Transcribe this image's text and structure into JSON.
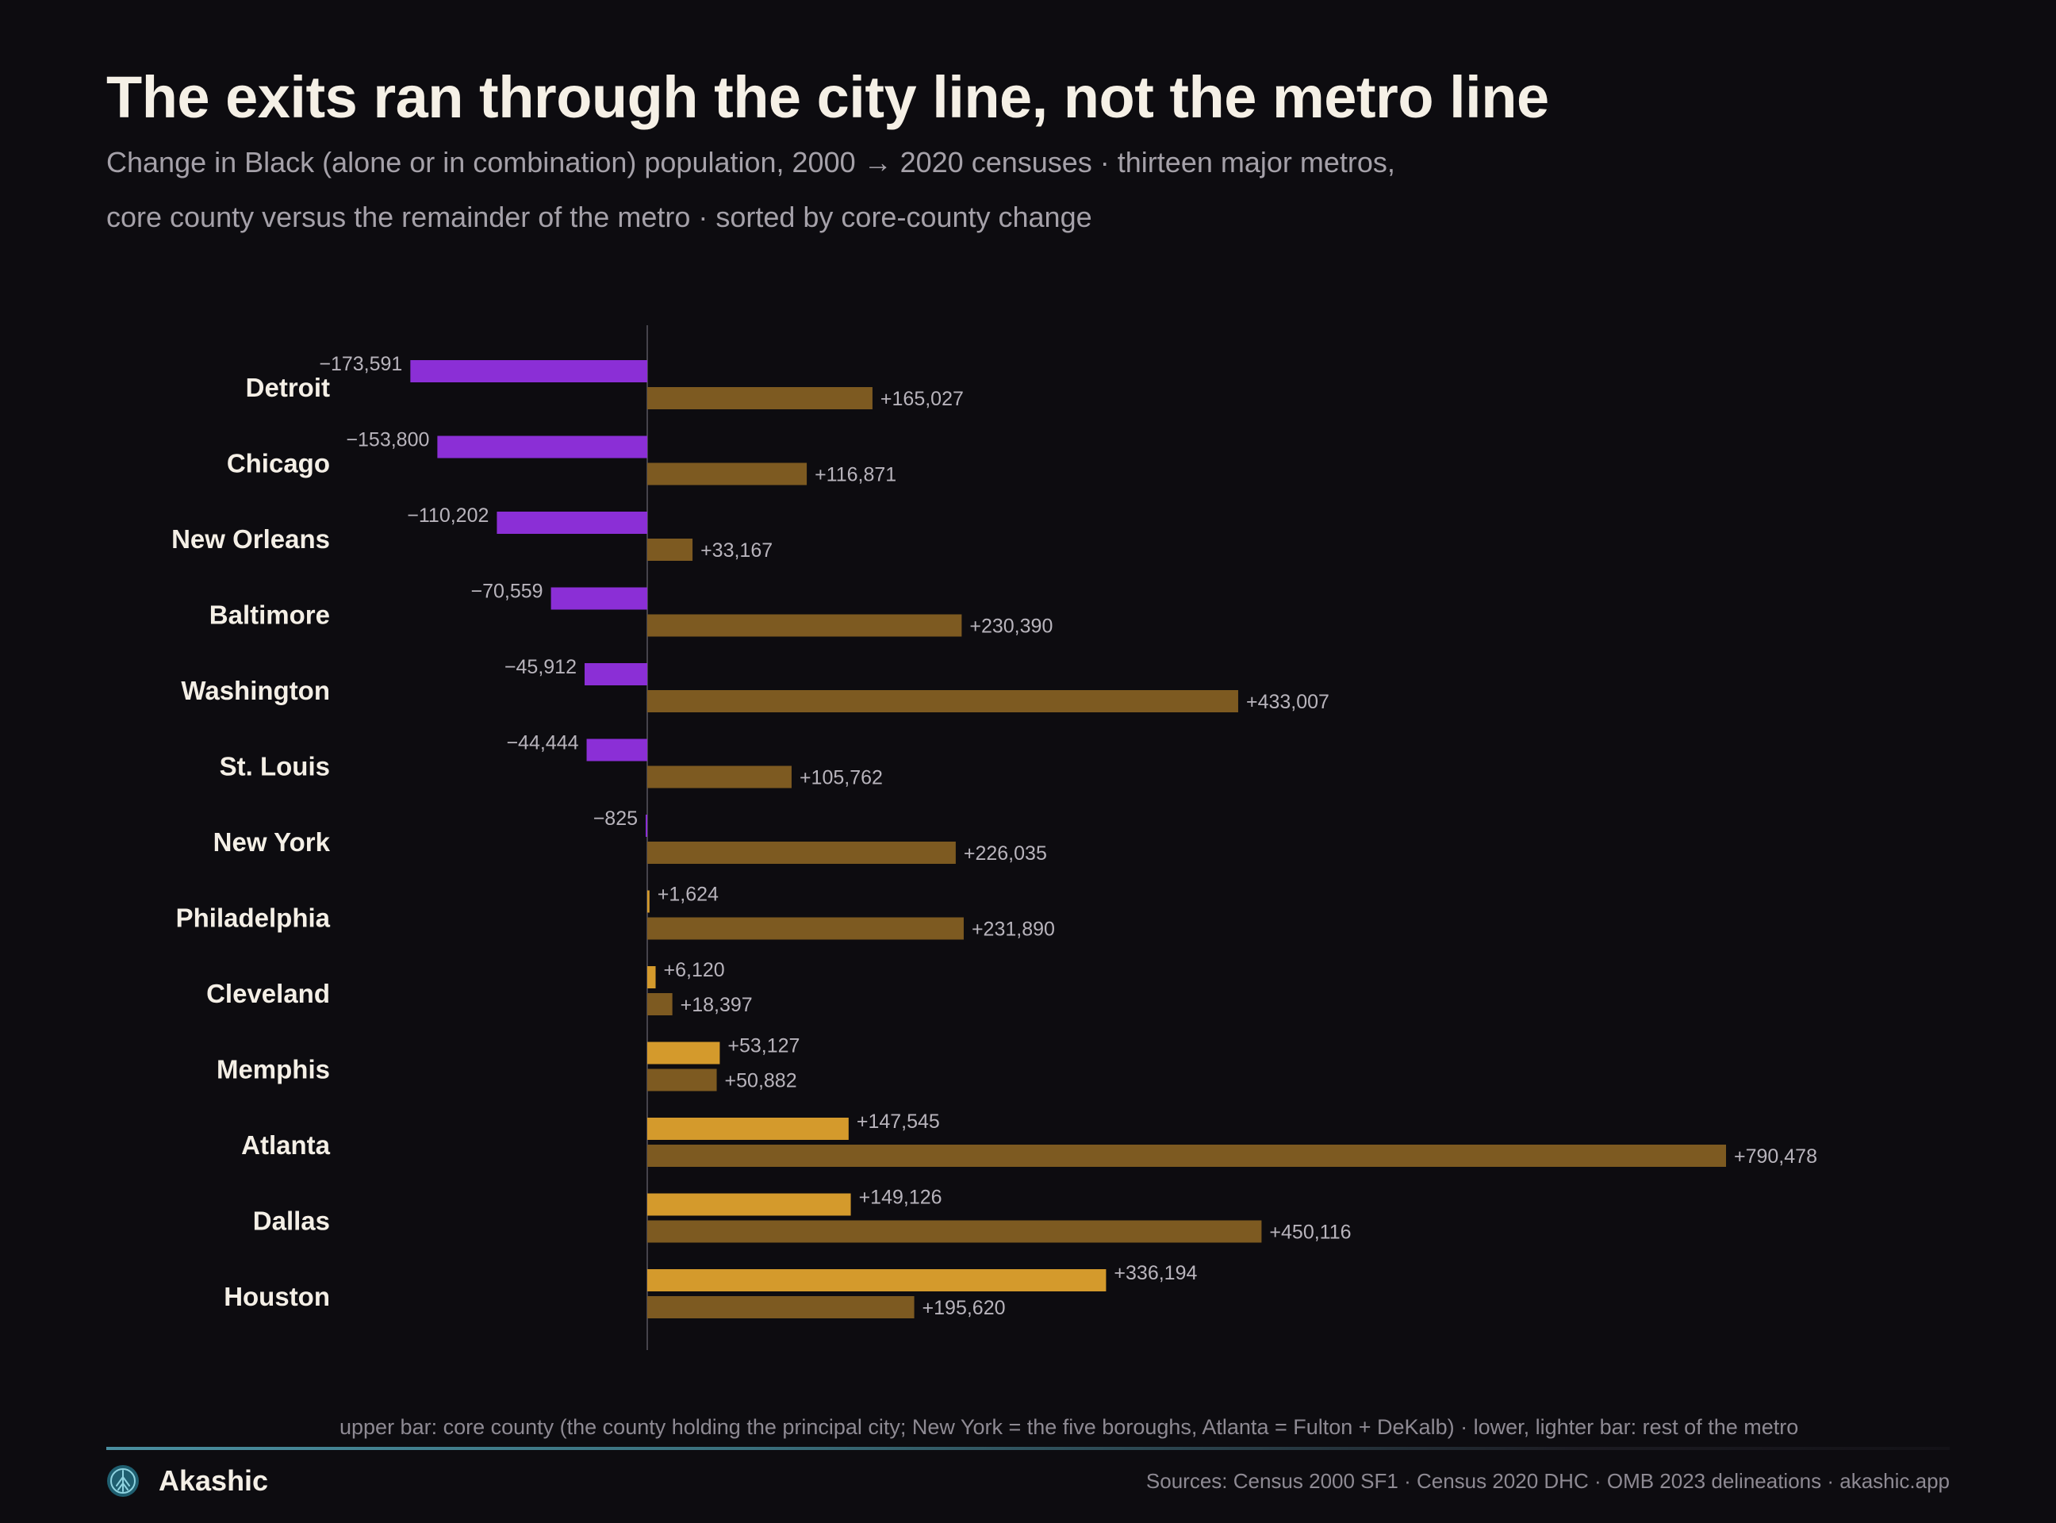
{
  "title": "The exits ran through the city line, not the metro line",
  "subtitle_line1": "Change in Black (alone or in combination) population, 2000 → 2020 censuses · thirteen major metros,",
  "subtitle_line2": "core county versus the remainder of the metro · sorted by core-county change",
  "note": "upper bar: core county (the county holding the principal city; New York = the five boroughs, Atlanta = Fulton + DeKalb) · lower, lighter bar: rest of the metro",
  "brand": "Akashic",
  "brand_icon": "akashic-logo-icon",
  "sources": "Sources: Census 2000 SF1 · Census 2020 DHC · OMB 2023 delineations  ·  akashic.app",
  "colors": {
    "background": "#0d0c10",
    "core_negative": "#8b2fd6",
    "core_positive": "#d49a2c",
    "rest_of_metro": "#7d5a21",
    "axis": "#45434b",
    "label": "#f4efe6",
    "value_label": "#b8b4bc"
  },
  "chart_data": {
    "type": "bar",
    "orientation": "horizontal",
    "categories": [
      "Detroit",
      "Chicago",
      "New Orleans",
      "Baltimore",
      "Washington",
      "St. Louis",
      "New York",
      "Philadelphia",
      "Cleveland",
      "Memphis",
      "Atlanta",
      "Dallas",
      "Houston"
    ],
    "series": [
      {
        "name": "core county",
        "values": [
          -173591,
          -153800,
          -110202,
          -70559,
          -45912,
          -44444,
          -825,
          1624,
          6120,
          53127,
          147545,
          149126,
          336194
        ],
        "labels": [
          "−173,591",
          "−153,800",
          "−110,202",
          "−70,559",
          "−45,912",
          "−44,444",
          "−825",
          "+1,624",
          "+6,120",
          "+53,127",
          "+147,545",
          "+149,126",
          "+336,194"
        ]
      },
      {
        "name": "rest of the metro",
        "values": [
          165027,
          116871,
          33167,
          230390,
          433007,
          105762,
          226035,
          231890,
          18397,
          50882,
          790478,
          450116,
          195620
        ],
        "labels": [
          "+165,027",
          "+116,871",
          "+33,167",
          "+230,390",
          "+433,007",
          "+105,762",
          "+226,035",
          "+231,890",
          "+18,397",
          "+50,882",
          "+790,478",
          "+450,116",
          "+195,620"
        ]
      }
    ],
    "xlim": [
      -173591,
      790478
    ],
    "sorted_by": "core-county change",
    "grid": false,
    "legend": "none"
  }
}
